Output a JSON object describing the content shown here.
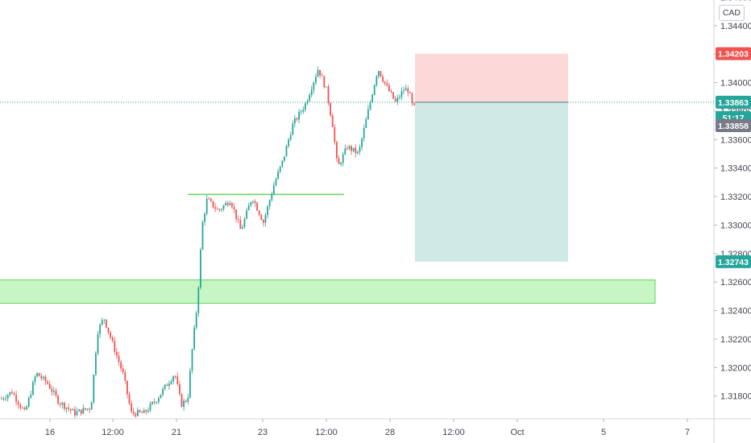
{
  "currency": "CAD",
  "chart_data": {
    "type": "candlestick",
    "y_axis": {
      "range": [
        1.3164,
        1.3458
      ],
      "ticks": [
        "1.31800",
        "1.32000",
        "1.32200",
        "1.32400",
        "1.32600",
        "1.32800",
        "1.33000",
        "1.33200",
        "1.33400",
        "1.33600",
        "1.33800",
        "1.34000",
        "1.34200",
        "1.34400",
        "1.34600"
      ]
    },
    "x_axis": {
      "ticks": [
        "16",
        "12:00",
        "21",
        "23",
        "12:00",
        "28",
        "12:00",
        "Oct",
        "5",
        "7"
      ]
    },
    "price_tags": [
      {
        "label": "1.34203",
        "value": 1.34203,
        "color": "#ef5350"
      },
      {
        "label": "1.33863",
        "value": 1.33863,
        "color": "#26a69a"
      },
      {
        "label": "51:17",
        "value": 1.33755,
        "color": "#26a69a"
      },
      {
        "label": "1.33858",
        "value": 1.33698,
        "color": "#787b86"
      },
      {
        "label": "1.32743",
        "value": 1.32743,
        "color": "#26a69a"
      }
    ],
    "current_price": 1.33863,
    "position": {
      "type": "short",
      "entry": 1.33863,
      "stop": 1.34203,
      "target": 1.32743
    },
    "support_zone": {
      "low": 1.32451,
      "high": 1.32615
    },
    "resistance_line": 1.33215,
    "colors": {
      "up": "#26a69a",
      "down": "#ef5350",
      "zone": "#4caf50",
      "stop_fill": "#fcd9d9",
      "target_fill": "#cfe9e6"
    }
  }
}
